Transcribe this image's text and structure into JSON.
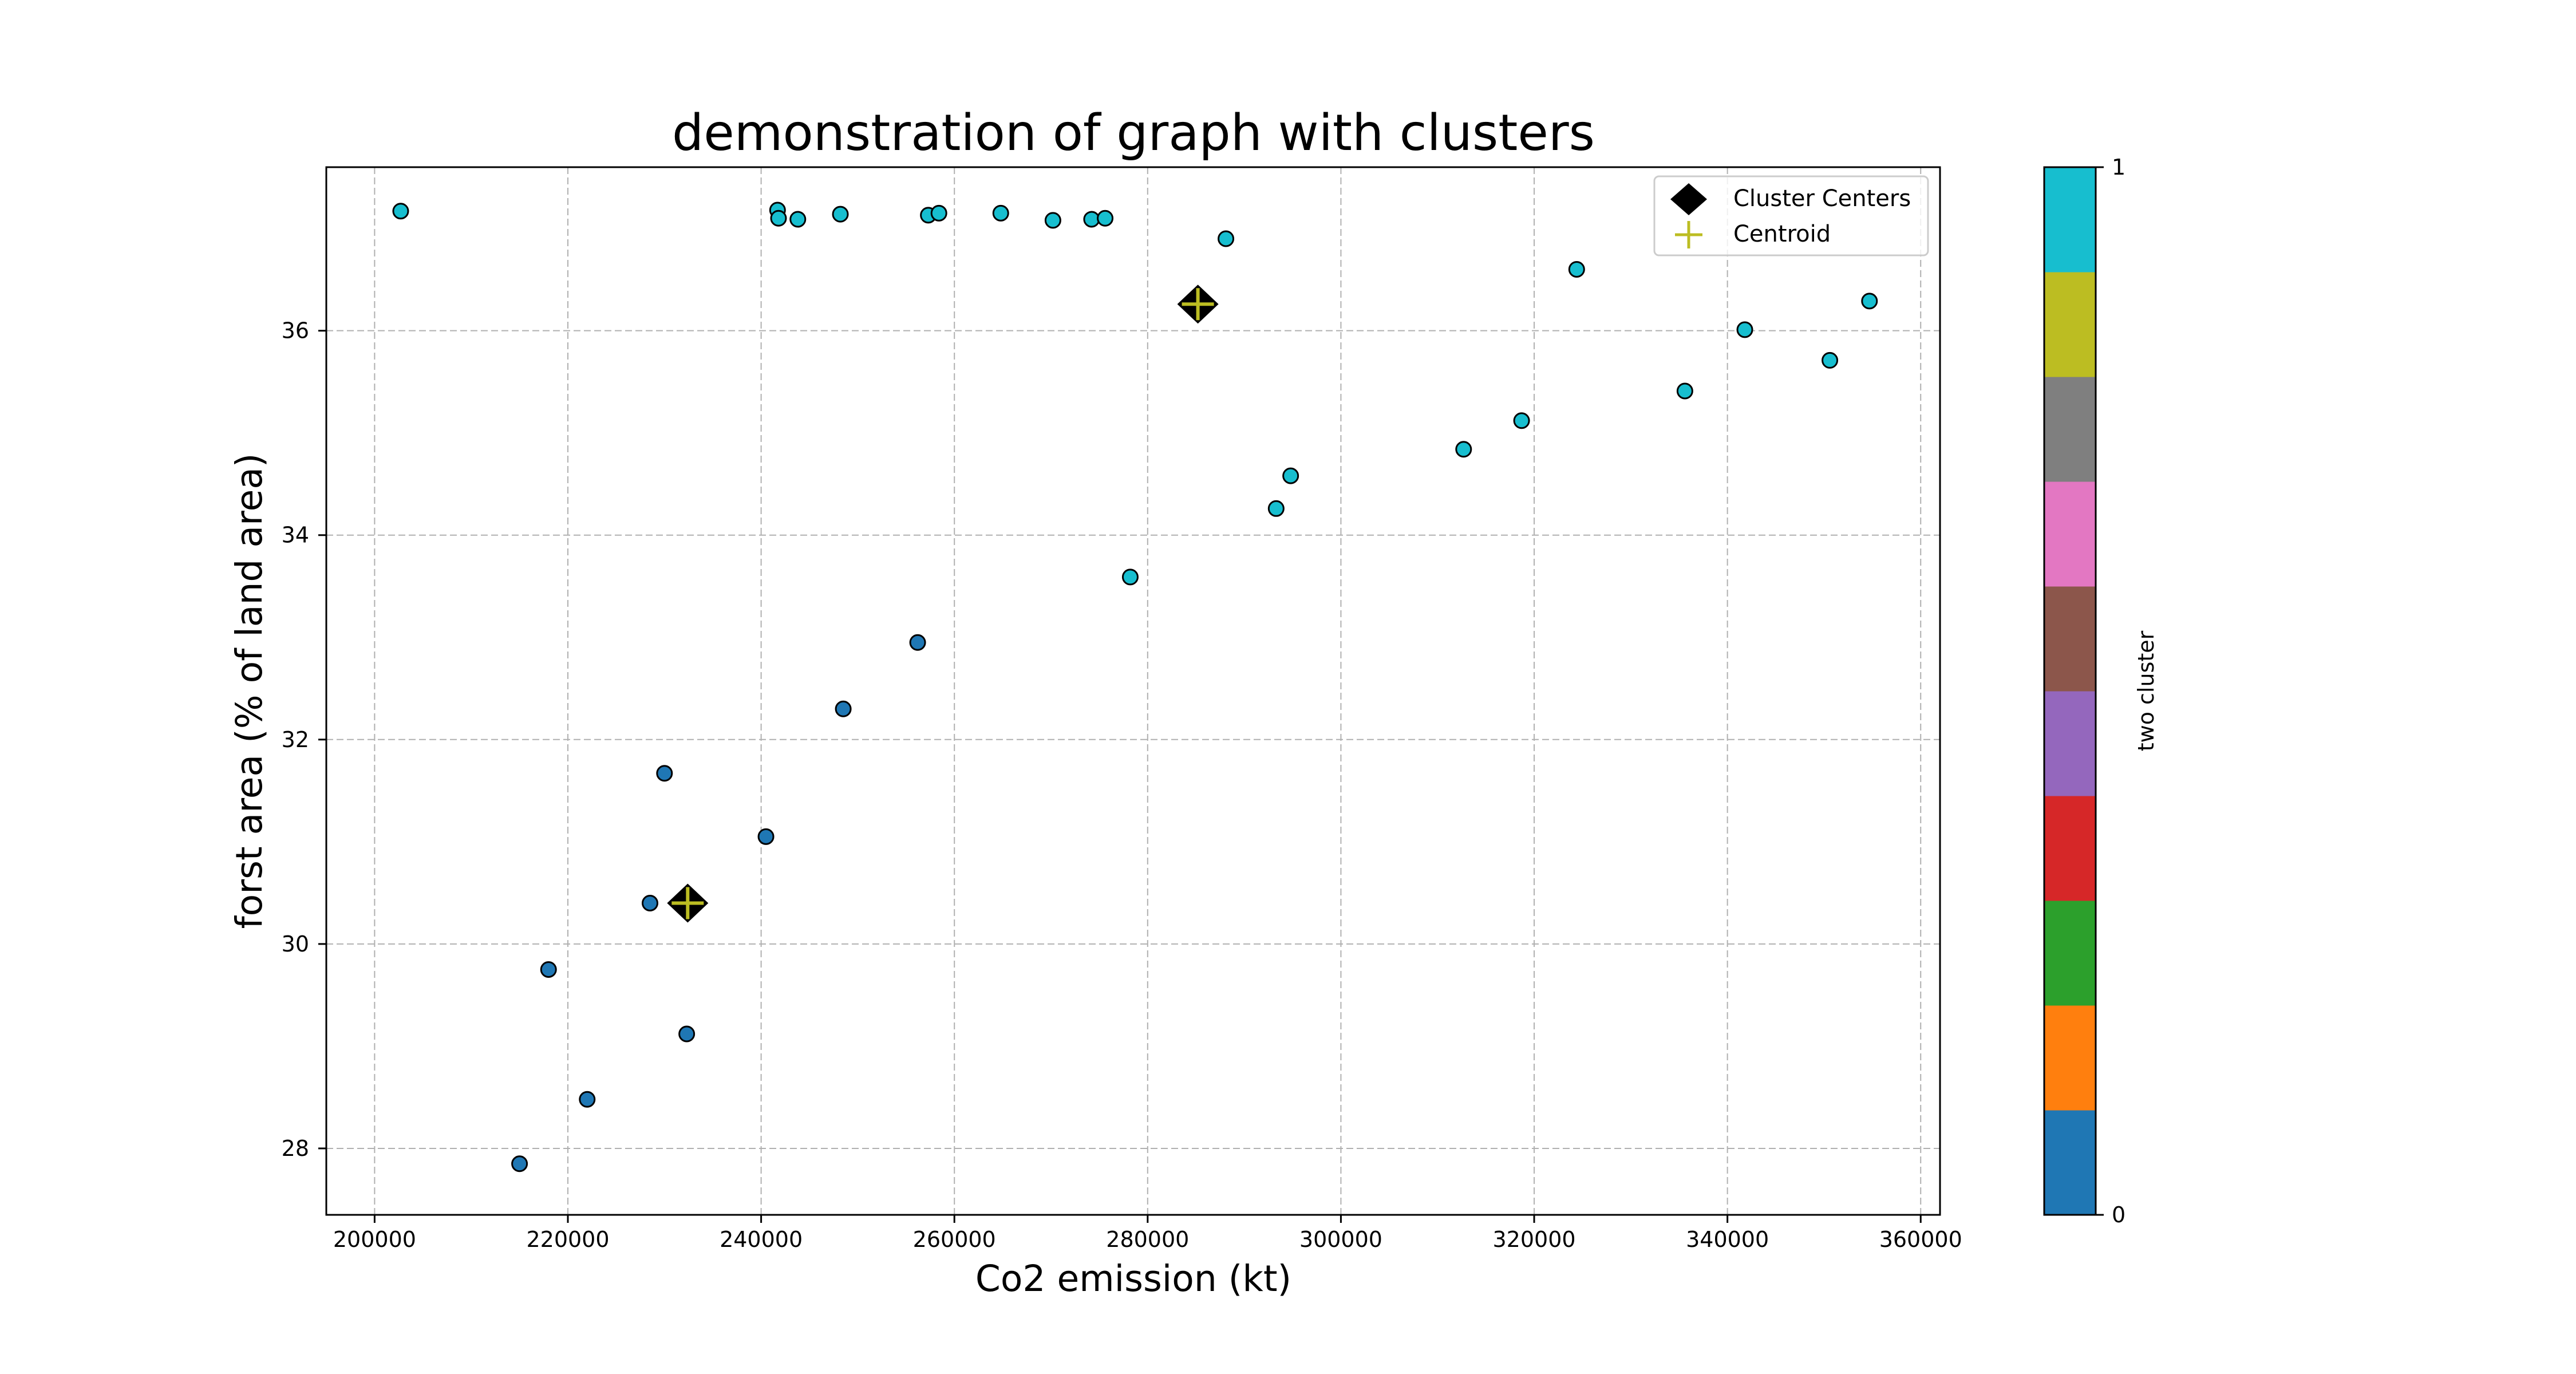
{
  "chart_data": {
    "type": "scatter",
    "title": "demonstration of graph with clusters",
    "xlabel": "Co2 emission (kt)",
    "ylabel": "forst area (% of land area)",
    "xlim": [
      195000,
      362000
    ],
    "ylim": [
      27.35,
      37.6
    ],
    "xticks": [
      200000,
      220000,
      240000,
      260000,
      280000,
      300000,
      320000,
      340000,
      360000
    ],
    "xtick_labels": [
      "200000",
      "220000",
      "240000",
      "260000",
      "280000",
      "300000",
      "320000",
      "340000",
      "360000"
    ],
    "yticks": [
      28,
      30,
      32,
      34,
      36
    ],
    "ytick_labels": [
      "28",
      "30",
      "32",
      "34",
      "36"
    ],
    "grid": true,
    "legend_position": "top-right",
    "series": [
      {
        "cluster": 0,
        "color": "#1f77b4",
        "points": [
          [
            215000,
            27.85
          ],
          [
            218000,
            29.75
          ],
          [
            222000,
            28.48
          ],
          [
            228500,
            30.4
          ],
          [
            230000,
            31.67
          ],
          [
            232300,
            29.12
          ],
          [
            240500,
            31.05
          ],
          [
            248500,
            32.3
          ],
          [
            256200,
            32.95
          ]
        ]
      },
      {
        "cluster": 1,
        "color": "#17becf",
        "points": [
          [
            202700,
            37.17
          ],
          [
            241700,
            37.18
          ],
          [
            241800,
            37.1
          ],
          [
            243800,
            37.09
          ],
          [
            248200,
            37.14
          ],
          [
            257300,
            37.13
          ],
          [
            258400,
            37.15
          ],
          [
            264800,
            37.15
          ],
          [
            270200,
            37.08
          ],
          [
            274200,
            37.09
          ],
          [
            275600,
            37.1
          ],
          [
            288100,
            36.9
          ],
          [
            278200,
            33.59
          ],
          [
            293300,
            34.26
          ],
          [
            294800,
            34.58
          ],
          [
            312700,
            34.84
          ],
          [
            318700,
            35.12
          ],
          [
            324400,
            36.6
          ],
          [
            335600,
            35.41
          ],
          [
            341800,
            36.01
          ],
          [
            350600,
            35.71
          ],
          [
            354700,
            36.29
          ]
        ]
      }
    ],
    "cluster_centers": [
      [
        232400,
        30.4
      ],
      [
        285200,
        36.26
      ]
    ],
    "centroids": [
      [
        232400,
        30.4
      ],
      [
        285200,
        36.26
      ]
    ],
    "legend": [
      "Cluster Centers",
      "Centroid"
    ],
    "colorbar": {
      "label": "two cluster",
      "tick_labels": [
        "0",
        "1"
      ],
      "colors": [
        "#1f77b4",
        "#ff7f0e",
        "#2ca02c",
        "#d62728",
        "#9467bd",
        "#8c564b",
        "#e377c2",
        "#7f7f7f",
        "#bcbd22",
        "#17becf"
      ]
    }
  }
}
